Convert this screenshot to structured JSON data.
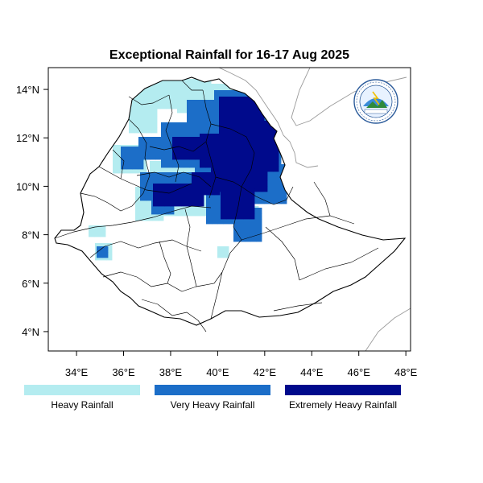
{
  "title": "Exceptional Rainfall for 16-17 Aug 2025",
  "axes": {
    "lon_range": [
      32.8,
      48.2
    ],
    "lat_range": [
      3.2,
      14.9
    ],
    "x_ticks": [
      {
        "value": 34,
        "label": "34°E"
      },
      {
        "value": 36,
        "label": "36°E"
      },
      {
        "value": 38,
        "label": "38°E"
      },
      {
        "value": 40,
        "label": "40°E"
      },
      {
        "value": 42,
        "label": "42°E"
      },
      {
        "value": 44,
        "label": "44°E"
      },
      {
        "value": 46,
        "label": "46°E"
      },
      {
        "value": 48,
        "label": "48°E"
      }
    ],
    "y_ticks": [
      {
        "value": 4,
        "label": "4°N"
      },
      {
        "value": 6,
        "label": "6°N"
      },
      {
        "value": 8,
        "label": "8°N"
      },
      {
        "value": 10,
        "label": "10°N"
      },
      {
        "value": 12,
        "label": "12°N"
      },
      {
        "value": 14,
        "label": "14°N"
      }
    ]
  },
  "legend": [
    {
      "label": "Heavy Rainfall",
      "color": "#b4ecf0"
    },
    {
      "label": "Very Heavy Rainfall",
      "color": "#1c6ec8"
    },
    {
      "label": "Extremely Heavy Rainfall",
      "color": "#000a8c"
    }
  ],
  "colors": {
    "heavy": "#b4ecf0",
    "very_heavy": "#1c6ec8",
    "extreme": "#000a8c",
    "border": "#000000",
    "neighbor_border": "#9a9a9a"
  },
  "logo": {
    "icon": "meteorology-agency-logo"
  }
}
